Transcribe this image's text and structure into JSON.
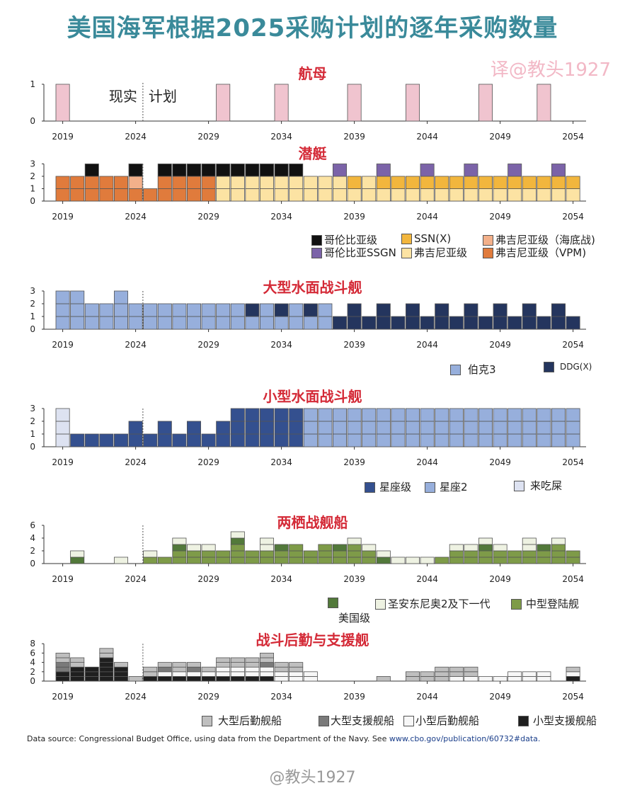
{
  "header": {
    "title": "美国海军根据2025采购计划的逐年采购数量",
    "credit": "译@教头1927"
  },
  "footer": {
    "source_prefix": "Data source: Congressional Budget Office, using data from the Department of the Navy. See ",
    "source_url": "www.cbo.gov/publication/60732#data.",
    "watermark": "@教头1927"
  },
  "chart_data": [
    {
      "type": "bar",
      "title": "航母",
      "xlim": [
        2019,
        2054
      ],
      "ylim": [
        0,
        1
      ],
      "yticks": [
        0,
        1
      ],
      "xticks": [
        "2019",
        "2024",
        "2029",
        "2034",
        "2039",
        "2044",
        "2049",
        "2054"
      ],
      "annotations": [
        "现实",
        "计划"
      ],
      "series": [
        {
          "name": "航母",
          "color": "#f0c4cf",
          "values": [
            1,
            0,
            0,
            0,
            0,
            0,
            0,
            0,
            0,
            0,
            0,
            1,
            0,
            0,
            0,
            1,
            0,
            0,
            0,
            0,
            1,
            0,
            0,
            0,
            1,
            0,
            0,
            0,
            0,
            1,
            0,
            0,
            0,
            1,
            0,
            0
          ]
        }
      ]
    },
    {
      "type": "bar",
      "title": "潜艇",
      "xlim": [
        2019,
        2054
      ],
      "ylim": [
        0,
        3
      ],
      "yticks": [
        0,
        1,
        2,
        3
      ],
      "xticks": [
        "2019",
        "2024",
        "2029",
        "2034",
        "2039",
        "2044",
        "2049",
        "2054"
      ],
      "series": [
        {
          "name": "弗吉尼亚级 (VPM)",
          "color": "#e07b3c",
          "values": [
            2,
            2,
            2,
            2,
            2,
            1,
            1,
            2,
            2,
            2,
            2,
            0,
            0,
            0,
            0,
            0,
            0,
            0,
            0,
            0,
            0,
            0,
            0,
            0,
            0,
            0,
            0,
            0,
            0,
            0,
            0,
            0,
            0,
            0,
            0,
            0
          ]
        },
        {
          "name": "弗吉尼亚级",
          "color": "#fce3a3",
          "values": [
            0,
            0,
            0,
            0,
            0,
            0,
            0,
            0,
            0,
            0,
            0,
            2,
            2,
            2,
            2,
            2,
            2,
            2,
            2,
            2,
            1,
            2,
            1,
            1,
            1,
            1,
            1,
            1,
            1,
            1,
            1,
            1,
            1,
            1,
            1,
            1
          ]
        },
        {
          "name": "SSN(X)",
          "color": "#f2b63d",
          "values": [
            0,
            0,
            0,
            0,
            0,
            0,
            0,
            0,
            0,
            0,
            0,
            0,
            0,
            0,
            0,
            0,
            0,
            0,
            0,
            0,
            1,
            0,
            1,
            1,
            1,
            1,
            1,
            1,
            1,
            1,
            1,
            1,
            1,
            1,
            1,
            1
          ]
        },
        {
          "name": "弗吉尼亚级 (海底战)",
          "color": "#f3b08a",
          "values": [
            0,
            0,
            0,
            0,
            0,
            1,
            0,
            0,
            0,
            0,
            0,
            0,
            0,
            0,
            0,
            0,
            0,
            0,
            0,
            0,
            0,
            0,
            0,
            0,
            0,
            0,
            0,
            0,
            0,
            0,
            0,
            0,
            0,
            0,
            0,
            0
          ]
        },
        {
          "name": "哥伦比亚级",
          "color": "#111111",
          "values": [
            0,
            0,
            1,
            0,
            0,
            1,
            0,
            1,
            1,
            1,
            1,
            1,
            1,
            1,
            1,
            1,
            1,
            0,
            0,
            0,
            0,
            0,
            0,
            0,
            0,
            0,
            0,
            0,
            0,
            0,
            0,
            0,
            0,
            0,
            0,
            0
          ]
        },
        {
          "name": "哥伦比亚SSGN",
          "color": "#7b63a8",
          "values": [
            0,
            0,
            0,
            0,
            0,
            0,
            0,
            0,
            0,
            0,
            0,
            0,
            0,
            0,
            0,
            0,
            0,
            0,
            0,
            1,
            0,
            0,
            1,
            0,
            0,
            1,
            0,
            0,
            1,
            0,
            0,
            1,
            0,
            0,
            1,
            0
          ]
        }
      ],
      "legend": [
        {
          "label": "哥伦比亚级",
          "color": "#111111"
        },
        {
          "label": "哥伦比亚SSGN",
          "color": "#7b63a8"
        },
        {
          "label": "SSN(X)",
          "color": "#f2b63d"
        },
        {
          "label": "弗吉尼亚级",
          "color": "#fce3a3"
        },
        {
          "label": "弗吉尼亚级（海底战)",
          "color": "#f3b08a"
        },
        {
          "label": "弗吉尼亚级（VPM)",
          "color": "#e07b3c"
        }
      ]
    },
    {
      "type": "bar",
      "title": "大型水面战斗舰",
      "xlim": [
        2019,
        2054
      ],
      "ylim": [
        0,
        3
      ],
      "yticks": [
        0,
        1,
        2,
        3
      ],
      "xticks": [
        "2019",
        "2024",
        "2029",
        "2034",
        "2039",
        "2044",
        "2049",
        "2054"
      ],
      "series": [
        {
          "name": "伯克3",
          "color": "#97afdc",
          "values": [
            3,
            3,
            2,
            2,
            3,
            2,
            2,
            2,
            2,
            2,
            2,
            2,
            2,
            1,
            2,
            1,
            2,
            1,
            2,
            0,
            0,
            0,
            0,
            0,
            0,
            0,
            0,
            0,
            0,
            0,
            0,
            0,
            0,
            0,
            0,
            0
          ]
        },
        {
          "name": "DDG(X)",
          "color": "#24355e",
          "values": [
            0,
            0,
            0,
            0,
            0,
            0,
            0,
            0,
            0,
            0,
            0,
            0,
            0,
            1,
            0,
            1,
            0,
            1,
            0,
            1,
            2,
            1,
            2,
            1,
            2,
            1,
            2,
            1,
            2,
            1,
            2,
            1,
            2,
            1,
            2,
            1
          ]
        }
      ],
      "legend": [
        {
          "label": "伯克3",
          "color": "#97afdc"
        },
        {
          "label": "DDG(X)",
          "color": "#24355e"
        }
      ]
    },
    {
      "type": "bar",
      "title": "小型水面战斗舰",
      "xlim": [
        2019,
        2054
      ],
      "ylim": [
        0,
        3
      ],
      "yticks": [
        0,
        1,
        2,
        3
      ],
      "xticks": [
        "2019",
        "2024",
        "2029",
        "2034",
        "2039",
        "2044",
        "2049",
        "2054"
      ],
      "series": [
        {
          "name": "来吃屎",
          "color": "#dde2f1",
          "values": [
            3,
            0,
            0,
            0,
            0,
            0,
            0,
            0,
            0,
            0,
            0,
            0,
            0,
            0,
            0,
            0,
            0,
            0,
            0,
            0,
            0,
            0,
            0,
            0,
            0,
            0,
            0,
            0,
            0,
            0,
            0,
            0,
            0,
            0,
            0,
            0
          ]
        },
        {
          "name": "星座级",
          "color": "#34508f",
          "values": [
            0,
            1,
            1,
            1,
            1,
            2,
            1,
            2,
            1,
            2,
            1,
            2,
            3,
            3,
            3,
            3,
            3,
            0,
            0,
            0,
            0,
            0,
            0,
            0,
            0,
            0,
            0,
            0,
            0,
            0,
            0,
            0,
            0,
            0,
            0,
            0
          ]
        },
        {
          "name": "星座2",
          "color": "#97afdc",
          "values": [
            0,
            0,
            0,
            0,
            0,
            0,
            0,
            0,
            0,
            0,
            0,
            0,
            0,
            0,
            0,
            0,
            0,
            3,
            3,
            3,
            3,
            3,
            3,
            3,
            3,
            3,
            3,
            3,
            3,
            3,
            3,
            3,
            3,
            3,
            3,
            3
          ]
        }
      ],
      "legend": [
        {
          "label": "星座级",
          "color": "#34508f"
        },
        {
          "label": "星座2",
          "color": "#97afdc"
        },
        {
          "label": "来吃屎",
          "color": "#dde2f1"
        }
      ]
    },
    {
      "type": "bar",
      "title": "两栖战舰船",
      "xlim": [
        2019,
        2054
      ],
      "ylim": [
        0,
        6
      ],
      "yticks": [
        0,
        2,
        4,
        6
      ],
      "xticks": [
        "2019",
        "2024",
        "2029",
        "2034",
        "2039",
        "2044",
        "2049",
        "2054"
      ],
      "series": [
        {
          "name": "中型登陆舰",
          "color": "#7e9b48",
          "values": [
            0,
            0,
            0,
            0,
            0,
            0,
            1,
            1,
            2,
            2,
            2,
            2,
            3,
            2,
            2,
            2,
            3,
            2,
            3,
            2,
            3,
            2,
            0,
            0,
            0,
            0,
            1,
            2,
            2,
            2,
            2,
            2,
            2,
            2,
            3,
            2
          ]
        },
        {
          "name": "美国级",
          "color": "#52793a",
          "values": [
            0,
            1,
            0,
            0,
            0,
            0,
            0,
            0,
            1,
            0,
            0,
            0,
            1,
            0,
            0,
            1,
            0,
            0,
            0,
            1,
            0,
            0,
            1,
            0,
            0,
            0,
            0,
            0,
            0,
            1,
            0,
            0,
            0,
            1,
            0,
            0
          ]
        },
        {
          "name": "圣安东尼奥2及下一代",
          "color": "#eef2e2",
          "values": [
            0,
            1,
            0,
            0,
            1,
            0,
            1,
            0,
            1,
            1,
            1,
            0,
            1,
            0,
            2,
            0,
            0,
            0,
            0,
            0,
            1,
            1,
            1,
            1,
            1,
            1,
            0,
            1,
            1,
            1,
            1,
            0,
            2,
            0,
            1,
            0
          ]
        }
      ],
      "legend": [
        {
          "label": "美国级",
          "color": "#52793a"
        },
        {
          "label": "圣安东尼奥2及下一代",
          "color": "#eef2e2"
        },
        {
          "label": "中型登陆舰",
          "color": "#7e9b48"
        }
      ]
    },
    {
      "type": "bar",
      "title": "战斗后勤与支援舰",
      "xlim": [
        2019,
        2054
      ],
      "ylim": [
        0,
        8
      ],
      "yticks": [
        0,
        2,
        4,
        6,
        8
      ],
      "xticks": [
        "2019",
        "2024",
        "2029",
        "2034",
        "2039",
        "2044",
        "2049",
        "2054"
      ],
      "series": [
        {
          "name": "小型支援舰船",
          "color": "#1f1f1f",
          "values": [
            2,
            3,
            3,
            5,
            3,
            0,
            1,
            1,
            1,
            1,
            1,
            1,
            1,
            1,
            1,
            0,
            0,
            0,
            0,
            0,
            0,
            0,
            0,
            0,
            0,
            0,
            0,
            0,
            0,
            0,
            0,
            0,
            0,
            0,
            0,
            1
          ]
        },
        {
          "name": "小型后勤舰船",
          "color": "#f7f7f7",
          "values": [
            0,
            0,
            0,
            0,
            0,
            0,
            0,
            1,
            1,
            1,
            1,
            2,
            2,
            2,
            2,
            2,
            2,
            2,
            0,
            0,
            0,
            0,
            0,
            0,
            0,
            0,
            0,
            1,
            1,
            1,
            1,
            2,
            2,
            2,
            0,
            1
          ]
        },
        {
          "name": "大型支援舰船",
          "color": "#7a7a7a",
          "values": [
            2,
            0,
            0,
            0,
            0,
            0,
            0,
            1,
            0,
            1,
            0,
            0,
            0,
            0,
            1,
            0,
            0,
            0,
            0,
            0,
            0,
            0,
            0,
            0,
            0,
            0,
            0,
            0,
            0,
            0,
            0,
            0,
            0,
            0,
            0,
            0
          ]
        },
        {
          "name": "大型后勤舰船",
          "color": "#bfbfbf",
          "values": [
            2,
            2,
            0,
            2,
            1,
            1,
            2,
            1,
            2,
            1,
            1,
            2,
            2,
            2,
            2,
            2,
            2,
            0,
            0,
            0,
            0,
            0,
            1,
            0,
            2,
            2,
            3,
            2,
            2,
            0,
            0,
            0,
            0,
            0,
            0,
            1
          ]
        }
      ],
      "legend": [
        {
          "label": "大型后勤舰船",
          "color": "#bfbfbf"
        },
        {
          "label": "大型支援舰船",
          "color": "#7a7a7a"
        },
        {
          "label": "小型后勤舰船",
          "color": "#f7f7f7"
        },
        {
          "label": "小型支援舰船",
          "color": "#1f1f1f"
        }
      ]
    }
  ]
}
